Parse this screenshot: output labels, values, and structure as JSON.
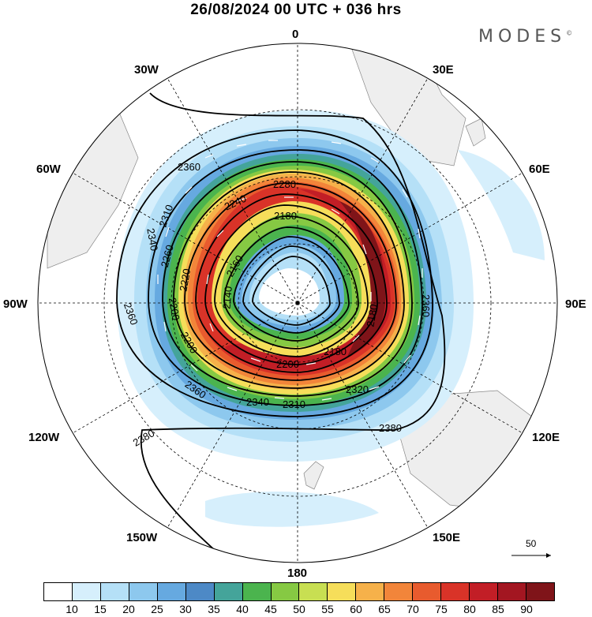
{
  "header": {
    "title": "26/08/2024  00 UTC  + 036 hrs",
    "brand": "MODES"
  },
  "longitudes": {
    "lon_0": "0",
    "lon_30w": "30W",
    "lon_30e": "30E",
    "lon_60w": "60W",
    "lon_60e": "60E",
    "lon_90w": "90W",
    "lon_90e": "90E",
    "lon_120w": "120W",
    "lon_120e": "120E",
    "lon_150w": "150W",
    "lon_150e": "150E",
    "lon_180": "180"
  },
  "contour_labels": [
    "2380",
    "2380",
    "2360",
    "2360",
    "2360",
    "2360",
    "2340",
    "2340",
    "2320",
    "2310",
    "2280",
    "2260",
    "2240",
    "2220",
    "2200",
    "2200",
    "2180",
    "2180",
    "2180",
    "2160",
    "2140",
    "2200",
    "2310"
  ],
  "vector_reference": {
    "label": "50"
  },
  "colorbar": {
    "colors": [
      "#ffffff",
      "#d6effc",
      "#b5e0f7",
      "#8dc8ee",
      "#66a9e0",
      "#4d89c6",
      "#44a49a",
      "#4bb44e",
      "#86c943",
      "#c8df52",
      "#f6de5a",
      "#f6b14a",
      "#f2853a",
      "#e85b2e",
      "#d93328",
      "#c21e26",
      "#a31621",
      "#7f1419"
    ],
    "ticks": [
      "10",
      "15",
      "20",
      "25",
      "30",
      "35",
      "40",
      "45",
      "50",
      "55",
      "60",
      "65",
      "70",
      "75",
      "80",
      "85",
      "90"
    ]
  }
}
